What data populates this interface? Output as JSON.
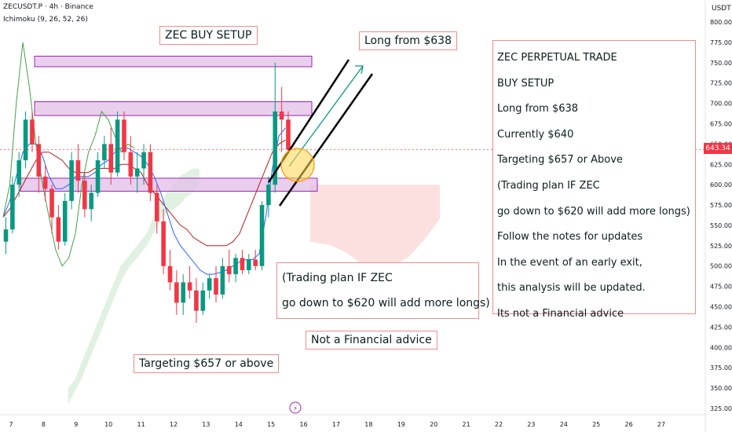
{
  "header": {
    "symbol": "ZECUSDT.P · 4h · Binance",
    "indicator": "Ichimoku (9, 26, 52, 26)",
    "currency": "USDT"
  },
  "price_tag": "643.34",
  "x_ticks": [
    "7",
    "8",
    "9",
    "10",
    "11",
    "12",
    "13",
    "14",
    "15",
    "16",
    "17",
    "18",
    "19",
    "20",
    "21",
    "22",
    "23",
    "24",
    "25",
    "26",
    "27"
  ],
  "notes": {
    "title": "ZEC BUY SETUP",
    "long_label": "Long from $638",
    "trading_plan_1": "(Trading plan IF ZEC",
    "trading_plan_2": "go down to $620 will add more longs)",
    "disclaimer": "Not a Financial advice",
    "target": "Targeting $657 or above"
  },
  "panel": {
    "lines": [
      "ZEC PERPETUAL TRADE",
      "BUY SETUP",
      "Long from $638",
      "Currently $640",
      "Targeting $657 or Above",
      "(Trading plan IF ZEC",
      "go down to $620 will add more longs)",
      "Follow the notes for updates",
      "In the event of an early exit,",
      "this analysis will be updated.",
      "Its not a Financial advice"
    ]
  },
  "colors": {
    "up": "#089981",
    "down": "#f23645",
    "zone_fill": "#e1bee7",
    "zone_border": "#9c27b0",
    "cloud_bull": "#c8e6c9",
    "cloud_bear": "#fbd3d3"
  },
  "chart_data": {
    "type": "candlestick",
    "y_axis": {
      "min": 325,
      "max": 800,
      "ticks": [
        325,
        350,
        375,
        400,
        425,
        450,
        475,
        500,
        525,
        550,
        575,
        600,
        625,
        650,
        675,
        700,
        725,
        750,
        775,
        800
      ],
      "side": "right"
    },
    "current_price": 643.34,
    "zones": [
      {
        "low": 745,
        "high": 758
      },
      {
        "low": 685,
        "high": 702
      },
      {
        "low": 592,
        "high": 608
      }
    ],
    "candles": [
      [
        530,
        560,
        515,
        545
      ],
      [
        545,
        610,
        540,
        600
      ],
      [
        600,
        640,
        585,
        630
      ],
      [
        630,
        690,
        620,
        680
      ],
      [
        680,
        690,
        640,
        650
      ],
      [
        650,
        660,
        590,
        610
      ],
      [
        610,
        625,
        580,
        595
      ],
      [
        595,
        600,
        540,
        560
      ],
      [
        560,
        575,
        520,
        530
      ],
      [
        530,
        590,
        525,
        580
      ],
      [
        580,
        640,
        570,
        630
      ],
      [
        630,
        650,
        590,
        605
      ],
      [
        605,
        615,
        560,
        570
      ],
      [
        570,
        600,
        555,
        590
      ],
      [
        590,
        640,
        585,
        630
      ],
      [
        630,
        660,
        620,
        650
      ],
      [
        650,
        670,
        600,
        615
      ],
      [
        615,
        690,
        610,
        680
      ],
      [
        680,
        690,
        630,
        640
      ],
      [
        640,
        660,
        600,
        610
      ],
      [
        610,
        640,
        590,
        620
      ],
      [
        620,
        650,
        600,
        640
      ],
      [
        640,
        650,
        580,
        590
      ],
      [
        590,
        600,
        540,
        555
      ],
      [
        555,
        570,
        490,
        500
      ],
      [
        500,
        520,
        470,
        480
      ],
      [
        480,
        495,
        440,
        455
      ],
      [
        455,
        490,
        440,
        480
      ],
      [
        480,
        500,
        460,
        470
      ],
      [
        470,
        485,
        430,
        445
      ],
      [
        445,
        480,
        440,
        470
      ],
      [
        470,
        490,
        460,
        485
      ],
      [
        485,
        500,
        455,
        465
      ],
      [
        465,
        510,
        460,
        500
      ],
      [
        500,
        520,
        480,
        490
      ],
      [
        490,
        515,
        480,
        510
      ],
      [
        510,
        520,
        490,
        495
      ],
      [
        495,
        515,
        490,
        508
      ],
      [
        508,
        520,
        495,
        500
      ],
      [
        500,
        580,
        495,
        575
      ],
      [
        575,
        610,
        560,
        600
      ],
      [
        600,
        750,
        590,
        690
      ],
      [
        690,
        720,
        640,
        680
      ],
      [
        680,
        690,
        640,
        643
      ]
    ],
    "tenkan": [
      560,
      580,
      610,
      640,
      650,
      650,
      635,
      610,
      595,
      595,
      600,
      610,
      610,
      610,
      615,
      625,
      630,
      640,
      645,
      645,
      640,
      635,
      625,
      610,
      590,
      565,
      540,
      525,
      515,
      505,
      495,
      490,
      490,
      492,
      495,
      500,
      505,
      508,
      508,
      515,
      560,
      620,
      660,
      670
    ],
    "kijun": [
      560,
      570,
      585,
      600,
      615,
      630,
      640,
      640,
      635,
      630,
      620,
      615,
      615,
      615,
      620,
      620,
      620,
      620,
      625,
      625,
      620,
      615,
      600,
      590,
      580,
      570,
      560,
      550,
      545,
      535,
      530,
      525,
      525,
      525,
      525,
      530,
      540,
      560,
      580,
      600,
      620,
      640,
      650,
      655
    ],
    "cloud_a": [
      350,
      360,
      380,
      400,
      420,
      440,
      460,
      480,
      500,
      510,
      520,
      530,
      540,
      560,
      575,
      590,
      600,
      610,
      615,
      620,
      620,
      615,
      605,
      595,
      585,
      575,
      560,
      545,
      535,
      525,
      520,
      520,
      525,
      535,
      545,
      555,
      565,
      575,
      585,
      595,
      600,
      600,
      600,
      600
    ],
    "cloud_b": [
      330,
      345,
      360,
      380,
      400,
      420,
      440,
      460,
      480,
      495,
      505,
      515,
      525,
      540,
      555,
      565,
      570,
      575,
      585,
      590,
      600,
      600,
      600,
      600,
      600,
      595,
      585,
      570,
      555,
      545,
      540,
      540,
      540,
      545,
      550,
      555,
      565,
      575,
      585,
      595,
      600,
      600,
      600,
      600
    ]
  }
}
